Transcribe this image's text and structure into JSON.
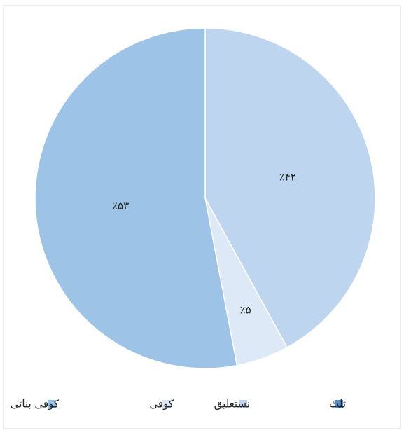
{
  "chart_data": {
    "type": "pie",
    "categories": [
      "ثلث",
      "نستعلیق",
      "کوفی",
      "کوفی بنائی"
    ],
    "values": [
      0,
      42,
      5,
      53
    ],
    "value_labels": [
      null,
      "٪۴۲",
      "٪۵",
      "٪۵۳"
    ],
    "colors": [
      "#5b8fc9",
      "#bdd5ee",
      "#dde9f6",
      "#9dc3e6"
    ],
    "legend": "bottom"
  }
}
